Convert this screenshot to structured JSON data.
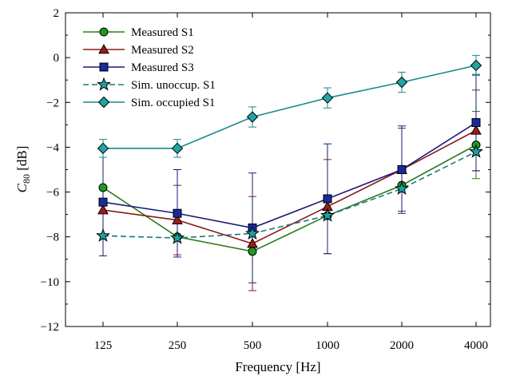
{
  "chart_data": {
    "type": "line",
    "xlabel": "Frequency  [Hz]",
    "ylabel_main": "C",
    "ylabel_sub": "80",
    "ylabel_unit": " [dB]",
    "categories": [
      "125",
      "250",
      "500",
      "1000",
      "2000",
      "4000"
    ],
    "ylim": [
      -12,
      2
    ],
    "yticks": [
      -12,
      -10,
      -8,
      -6,
      -4,
      -2,
      0,
      2
    ],
    "ytick_labels": [
      "−12",
      "−10",
      "−8",
      "−6",
      "−4",
      "−2",
      "0",
      "2"
    ],
    "grid": false,
    "legend_position": "top-left",
    "series": [
      {
        "name": "Measured S1",
        "color": "#2e7d1e",
        "fill": "#1f9a1f",
        "marker": "circle",
        "dash": "solid",
        "values": [
          -5.8,
          -8.0,
          -8.65,
          -7.05,
          -5.7,
          -3.9
        ],
        "err": [
          0,
          0,
          0,
          0,
          0,
          1.5
        ]
      },
      {
        "name": "Measured S2",
        "color": "#8b1a1a",
        "fill": "#9e1b1b",
        "marker": "triangle",
        "dash": "solid",
        "values": [
          -6.8,
          -7.25,
          -8.3,
          -6.65,
          -5.0,
          -3.25
        ],
        "err": [
          0,
          1.55,
          2.1,
          2.1,
          1.85,
          1.8
        ]
      },
      {
        "name": "Measured S3",
        "color": "#1a1a7a",
        "fill": "#1a2a9a",
        "marker": "square",
        "dash": "solid",
        "values": [
          -6.45,
          -6.95,
          -7.6,
          -6.3,
          -5.0,
          -2.9
        ],
        "err": [
          2.4,
          1.95,
          2.45,
          2.45,
          1.95,
          2.15
        ]
      },
      {
        "name": "Sim. unoccup. S1",
        "color": "#1a7a7a",
        "fill": "#1aa3a3",
        "marker": "star",
        "dash": "dashed",
        "values": [
          -7.95,
          -8.05,
          -7.85,
          -7.05,
          -5.85,
          -4.2
        ],
        "err": [
          0,
          0,
          0,
          0,
          0,
          0
        ]
      },
      {
        "name": "Sim. occupied S1",
        "color": "#1a8a8a",
        "fill": "#1fa5a5",
        "marker": "diamond",
        "dash": "solid",
        "values": [
          -4.05,
          -4.05,
          -2.65,
          -1.8,
          -1.1,
          -0.35
        ],
        "err": [
          0.4,
          0.4,
          0.45,
          0.45,
          0.45,
          0.45
        ]
      }
    ]
  }
}
